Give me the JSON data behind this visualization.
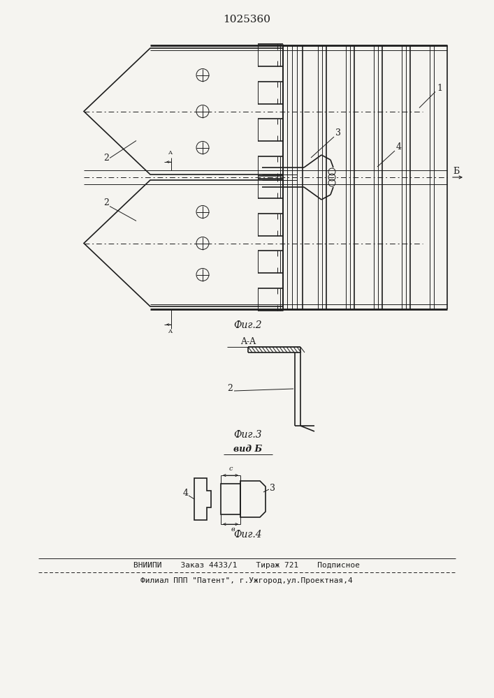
{
  "title": "1025360",
  "fig2_label": "Фиг.2",
  "fig3_label": "Фиг.3",
  "fig4_label": "Фиг.4",
  "section_label": "A-A",
  "view_label": "вид Б",
  "footer1": "ВНИИПИ    Заказ 4433/1    Тираж 721    Подписное",
  "footer2": "Филиал ППП \"Патент\", г.Ужгород,ул.Проектная,4",
  "bg_color": "#f5f4f0",
  "line_color": "#1c1c1c",
  "lw_thin": 0.7,
  "lw_med": 1.2,
  "lw_thick": 2.0,
  "font_size_title": 11,
  "font_size_label": 9,
  "font_size_small": 7,
  "font_size_footer": 8
}
